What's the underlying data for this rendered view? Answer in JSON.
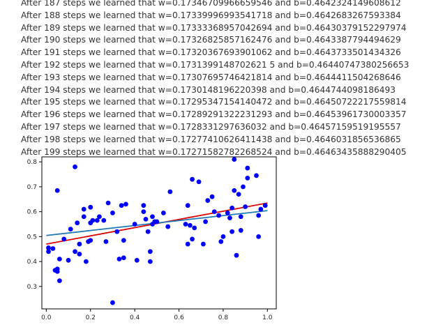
{
  "log_lines": [
    "After 187 steps we learned that w=0.17346709966659546 and b=0.4642324149608612",
    "After 188 steps we learned that w=0.17339996993541718 and b=0.4642683267593384",
    "After 189 steps we learned that w=0.17333368957042694 and b=0.46430379152297974",
    "After 190 steps we learned that w=0.17326825857162476 and b=0.4643387794494629",
    "After 191 steps we learned that w=0.17320367693901062 and b=0.4643733501434326",
    "After 192 steps we learned that w=0.1731399148702621 5 and b=0.46440747380256653",
    "After 193 steps we learned that w=0.17307695746421814 and b=0.4644411504268646",
    "After 194 steps we learned that w=0.1730148196220398 and b=0.4644744098186493",
    "After 195 steps we learned that w=0.17295347154140472 and b=0.46450722217559814",
    "After 196 steps we learned that w=0.17289291322231293 and b=0.46453961730003357",
    "After 197 steps we learned that w=0.1728331297636032 and b=0.46457159519195557",
    "After 198 steps we learned that w=0.17277410626411438 and b=0.4646031856536865",
    "After 199 steps we learned that w=0.17271582782268524 and b=0.46463435888290405"
  ],
  "chart_data": {
    "type": "scatter",
    "title": "",
    "xlabel": "",
    "ylabel": "",
    "xlim": [
      -0.02,
      1.04
    ],
    "ylim": [
      0.21,
      0.82
    ],
    "grid": false,
    "x_ticks": [
      0.0,
      0.2,
      0.4,
      0.6,
      0.8,
      1.0
    ],
    "x_tick_labels": [
      "0.0",
      "0.2",
      "0.4",
      "0.6",
      "0.8",
      "1.0"
    ],
    "y_ticks": [
      0.3,
      0.4,
      0.5,
      0.6,
      0.7,
      0.8
    ],
    "y_tick_labels": [
      "0.3",
      "0.4",
      "0.5",
      "0.6",
      "0.7",
      "0.8"
    ],
    "colors": {
      "points": "#0000ff",
      "true_line": "#dd0000",
      "fit_line": "#1f77b4"
    },
    "points": [
      [
        0.01,
        0.455
      ],
      [
        0.01,
        0.44
      ],
      [
        0.03,
        0.452
      ],
      [
        0.04,
        0.365
      ],
      [
        0.05,
        0.37
      ],
      [
        0.05,
        0.36
      ],
      [
        0.05,
        0.685
      ],
      [
        0.06,
        0.41
      ],
      [
        0.06,
        0.323
      ],
      [
        0.08,
        0.49
      ],
      [
        0.1,
        0.405
      ],
      [
        0.11,
        0.53
      ],
      [
        0.13,
        0.78
      ],
      [
        0.13,
        0.44
      ],
      [
        0.14,
        0.555
      ],
      [
        0.15,
        0.43
      ],
      [
        0.15,
        0.47
      ],
      [
        0.17,
        0.58
      ],
      [
        0.17,
        0.61
      ],
      [
        0.18,
        0.4
      ],
      [
        0.19,
        0.48
      ],
      [
        0.2,
        0.555
      ],
      [
        0.2,
        0.618
      ],
      [
        0.2,
        0.485
      ],
      [
        0.21,
        0.565
      ],
      [
        0.23,
        0.565
      ],
      [
        0.24,
        0.58
      ],
      [
        0.26,
        0.565
      ],
      [
        0.27,
        0.48
      ],
      [
        0.28,
        0.635
      ],
      [
        0.3,
        0.595
      ],
      [
        0.3,
        0.235
      ],
      [
        0.32,
        0.52
      ],
      [
        0.33,
        0.41
      ],
      [
        0.34,
        0.625
      ],
      [
        0.35,
        0.485
      ],
      [
        0.35,
        0.415
      ],
      [
        0.36,
        0.63
      ],
      [
        0.4,
        0.55
      ],
      [
        0.41,
        0.405
      ],
      [
        0.44,
        0.625
      ],
      [
        0.44,
        0.6
      ],
      [
        0.45,
        0.57
      ],
      [
        0.46,
        0.52
      ],
      [
        0.47,
        0.44
      ],
      [
        0.47,
        0.4
      ],
      [
        0.48,
        0.58
      ],
      [
        0.48,
        0.55
      ],
      [
        0.49,
        0.56
      ],
      [
        0.5,
        0.56
      ],
      [
        0.53,
        0.595
      ],
      [
        0.55,
        0.54
      ],
      [
        0.56,
        0.68
      ],
      [
        0.63,
        0.55
      ],
      [
        0.64,
        0.47
      ],
      [
        0.64,
        0.625
      ],
      [
        0.65,
        0.545
      ],
      [
        0.66,
        0.73
      ],
      [
        0.66,
        0.49
      ],
      [
        0.67,
        0.535
      ],
      [
        0.69,
        0.72
      ],
      [
        0.71,
        0.47
      ],
      [
        0.72,
        0.56
      ],
      [
        0.73,
        0.645
      ],
      [
        0.75,
        0.66
      ],
      [
        0.76,
        0.6
      ],
      [
        0.78,
        0.585
      ],
      [
        0.79,
        0.48
      ],
      [
        0.8,
        0.5
      ],
      [
        0.82,
        0.595
      ],
      [
        0.83,
        0.575
      ],
      [
        0.84,
        0.52
      ],
      [
        0.84,
        0.615
      ],
      [
        0.85,
        0.81
      ],
      [
        0.85,
        0.685
      ],
      [
        0.86,
        0.425
      ],
      [
        0.87,
        0.67
      ],
      [
        0.88,
        0.58
      ],
      [
        0.88,
        0.525
      ],
      [
        0.89,
        0.7
      ],
      [
        0.9,
        0.62
      ],
      [
        0.91,
        0.775
      ],
      [
        0.91,
        0.735
      ],
      [
        0.95,
        0.745
      ],
      [
        0.96,
        0.5
      ],
      [
        0.96,
        0.585
      ],
      [
        0.97,
        0.61
      ],
      [
        0.99,
        0.625
      ]
    ],
    "true_line": {
      "x": [
        0.0,
        1.0
      ],
      "y": [
        0.47,
        0.635
      ]
    },
    "fit_line": {
      "x": [
        0.0,
        1.0
      ],
      "y": [
        0.5046,
        0.6043
      ]
    }
  }
}
